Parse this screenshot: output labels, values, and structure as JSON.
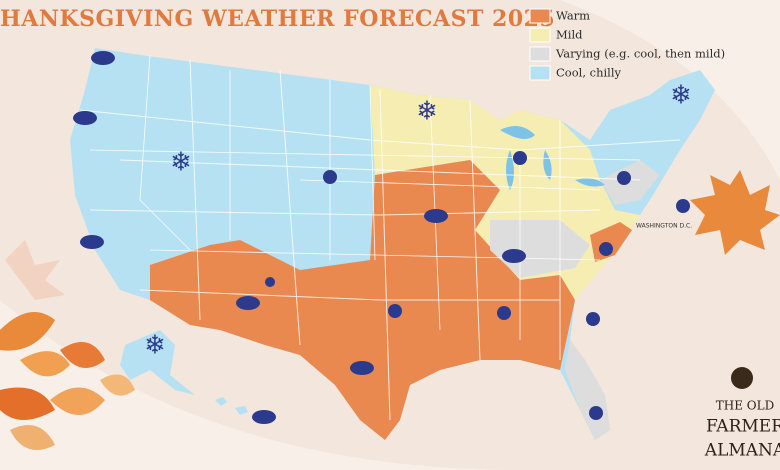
{
  "header": {
    "title": "HANKSGIVING WEATHER FORECAST 2025"
  },
  "legend": {
    "items": [
      {
        "label": "Warm",
        "color": "#e9894f"
      },
      {
        "label": "Mild",
        "color": "#f6edb2"
      },
      {
        "label": "Varying (e.g. cool, then mild)",
        "color": "#dddddd"
      },
      {
        "label": "Cool, chilly",
        "color": "#b6e1f3"
      }
    ]
  },
  "map": {
    "label": "WASHINGTON D.C."
  },
  "logo": {
    "lines": [
      "THE OLD",
      "FARMER",
      "ALMANA"
    ]
  }
}
